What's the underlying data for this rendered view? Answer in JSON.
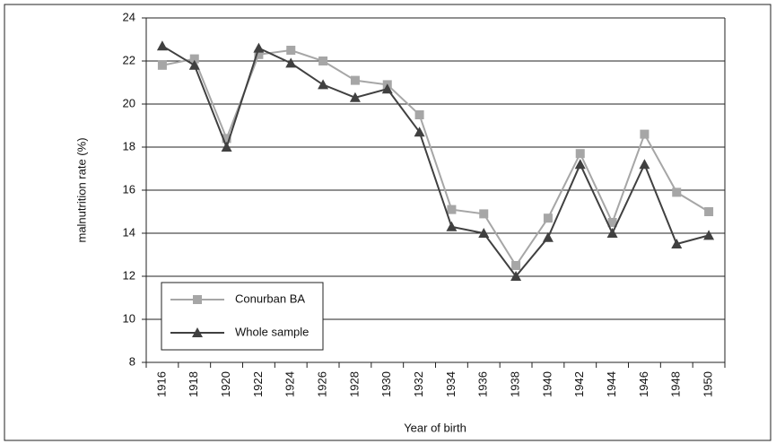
{
  "chart_data": {
    "type": "line",
    "x_label": "Year of birth",
    "y_label": "malnutrition rate (%)",
    "categories": [
      "1916",
      "1918",
      "1920",
      "1922",
      "1924",
      "1926",
      "1928",
      "1930",
      "1932",
      "1934",
      "1936",
      "1938",
      "1940",
      "1942",
      "1944",
      "1946",
      "1948",
      "1950"
    ],
    "series": [
      {
        "name": "Conurban BA",
        "color": "#a6a6a6",
        "marker": "square",
        "values": [
          21.8,
          22.1,
          18.4,
          22.3,
          22.5,
          22.0,
          21.1,
          20.9,
          19.5,
          15.1,
          14.9,
          12.5,
          14.7,
          17.7,
          14.5,
          18.6,
          15.9,
          15.0
        ]
      },
      {
        "name": "Whole sample",
        "color": "#404040",
        "marker": "triangle",
        "values": [
          22.7,
          21.8,
          18.0,
          22.6,
          21.9,
          20.9,
          20.3,
          20.7,
          18.7,
          14.3,
          14.0,
          12.0,
          13.8,
          17.2,
          14.0,
          17.2,
          13.5,
          13.9
        ]
      }
    ],
    "ylim": [
      8,
      24
    ],
    "yticks": [
      8,
      10,
      12,
      14,
      16,
      18,
      20,
      22,
      24
    ],
    "grid": true,
    "legend": "lower-left"
  }
}
